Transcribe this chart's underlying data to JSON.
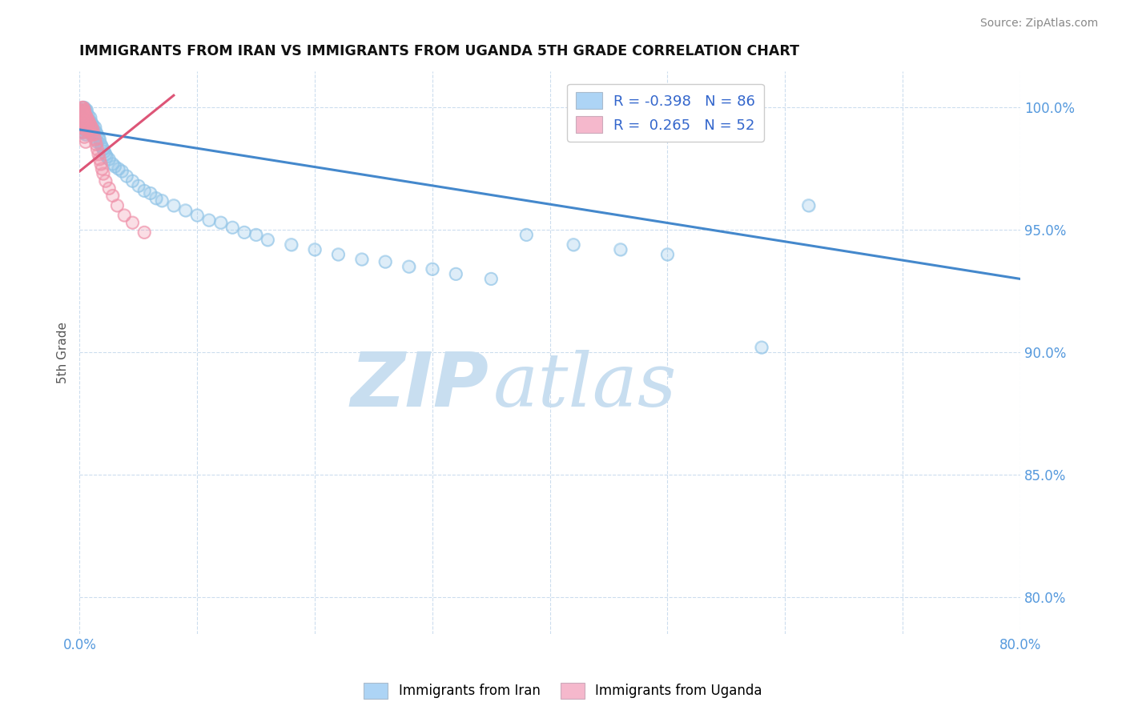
{
  "title": "IMMIGRANTS FROM IRAN VS IMMIGRANTS FROM UGANDA 5TH GRADE CORRELATION CHART",
  "source": "Source: ZipAtlas.com",
  "ylabel": "5th Grade",
  "ylabel_ticks": [
    "100.0%",
    "95.0%",
    "90.0%",
    "85.0%",
    "80.0%"
  ],
  "ylabel_tick_vals": [
    1.0,
    0.95,
    0.9,
    0.85,
    0.8
  ],
  "xlim": [
    0.0,
    0.8
  ],
  "ylim": [
    0.785,
    1.015
  ],
  "legend_iran": {
    "R": -0.398,
    "N": 86,
    "color": "#add4f5"
  },
  "legend_uganda": {
    "R": 0.265,
    "N": 52,
    "color": "#f5b8cc"
  },
  "iran_scatter_color": "#92C5E8",
  "uganda_scatter_color": "#F092AA",
  "trend_iran_color": "#4488CC",
  "trend_uganda_color": "#DD5577",
  "watermark_zip": "ZIP",
  "watermark_atlas": "atlas",
  "watermark_color_zip": "#C8DEF0",
  "watermark_color_atlas": "#C8DEF0",
  "iran_trend_x0": 0.0,
  "iran_trend_y0": 0.991,
  "iran_trend_x1": 0.8,
  "iran_trend_y1": 0.93,
  "uganda_trend_x0": 0.0,
  "uganda_trend_y0": 0.974,
  "uganda_trend_x1": 0.08,
  "uganda_trend_y1": 1.005,
  "iran_x": [
    0.001,
    0.001,
    0.002,
    0.002,
    0.002,
    0.003,
    0.003,
    0.003,
    0.003,
    0.004,
    0.004,
    0.004,
    0.005,
    0.005,
    0.005,
    0.005,
    0.006,
    0.006,
    0.006,
    0.007,
    0.007,
    0.007,
    0.008,
    0.008,
    0.009,
    0.009,
    0.01,
    0.01,
    0.011,
    0.011,
    0.012,
    0.012,
    0.013,
    0.014,
    0.015,
    0.015,
    0.016,
    0.017,
    0.018,
    0.019,
    0.02,
    0.021,
    0.022,
    0.023,
    0.025,
    0.028,
    0.03,
    0.033,
    0.036,
    0.04,
    0.045,
    0.05,
    0.055,
    0.06,
    0.065,
    0.07,
    0.08,
    0.09,
    0.1,
    0.11,
    0.12,
    0.13,
    0.14,
    0.15,
    0.16,
    0.18,
    0.2,
    0.22,
    0.24,
    0.26,
    0.28,
    0.3,
    0.32,
    0.35,
    0.38,
    0.42,
    0.46,
    0.5,
    0.58,
    0.62,
    0.003,
    0.004,
    0.005,
    0.006,
    0.005,
    0.003
  ],
  "iran_y": [
    0.998,
    0.995,
    0.997,
    0.993,
    0.99,
    0.999,
    0.996,
    0.993,
    0.99,
    0.997,
    0.994,
    0.991,
    0.998,
    0.995,
    0.992,
    0.989,
    0.996,
    0.993,
    0.99,
    0.997,
    0.994,
    0.991,
    0.995,
    0.992,
    0.996,
    0.993,
    0.994,
    0.991,
    0.993,
    0.99,
    0.991,
    0.988,
    0.992,
    0.99,
    0.989,
    0.986,
    0.988,
    0.987,
    0.985,
    0.984,
    0.983,
    0.982,
    0.981,
    0.98,
    0.979,
    0.977,
    0.976,
    0.975,
    0.974,
    0.972,
    0.97,
    0.968,
    0.966,
    0.965,
    0.963,
    0.962,
    0.96,
    0.958,
    0.956,
    0.954,
    0.953,
    0.951,
    0.949,
    0.948,
    0.946,
    0.944,
    0.942,
    0.94,
    0.938,
    0.937,
    0.935,
    0.934,
    0.932,
    0.93,
    0.948,
    0.944,
    0.942,
    0.94,
    0.902,
    0.96,
    1.0,
    1.0,
    0.999,
    0.999,
    0.997,
    0.997
  ],
  "uganda_x": [
    0.001,
    0.001,
    0.002,
    0.002,
    0.002,
    0.003,
    0.003,
    0.003,
    0.004,
    0.004,
    0.005,
    0.005,
    0.005,
    0.006,
    0.006,
    0.007,
    0.007,
    0.008,
    0.008,
    0.009,
    0.009,
    0.01,
    0.01,
    0.011,
    0.012,
    0.013,
    0.014,
    0.015,
    0.016,
    0.017,
    0.018,
    0.019,
    0.02,
    0.022,
    0.025,
    0.028,
    0.032,
    0.038,
    0.045,
    0.055,
    0.002,
    0.002,
    0.003,
    0.003,
    0.004,
    0.004,
    0.002,
    0.002,
    0.003,
    0.003,
    0.004,
    0.005
  ],
  "uganda_y": [
    0.999,
    0.997,
    0.998,
    0.995,
    0.993,
    0.999,
    0.997,
    0.994,
    0.998,
    0.995,
    0.997,
    0.994,
    0.991,
    0.996,
    0.993,
    0.995,
    0.992,
    0.994,
    0.991,
    0.993,
    0.99,
    0.992,
    0.989,
    0.991,
    0.989,
    0.987,
    0.985,
    0.983,
    0.981,
    0.979,
    0.977,
    0.975,
    0.973,
    0.97,
    0.967,
    0.964,
    0.96,
    0.956,
    0.953,
    0.949,
    1.0,
    0.998,
    1.0,
    0.997,
    0.999,
    0.996,
    0.995,
    0.992,
    0.993,
    0.99,
    0.988,
    0.986
  ]
}
